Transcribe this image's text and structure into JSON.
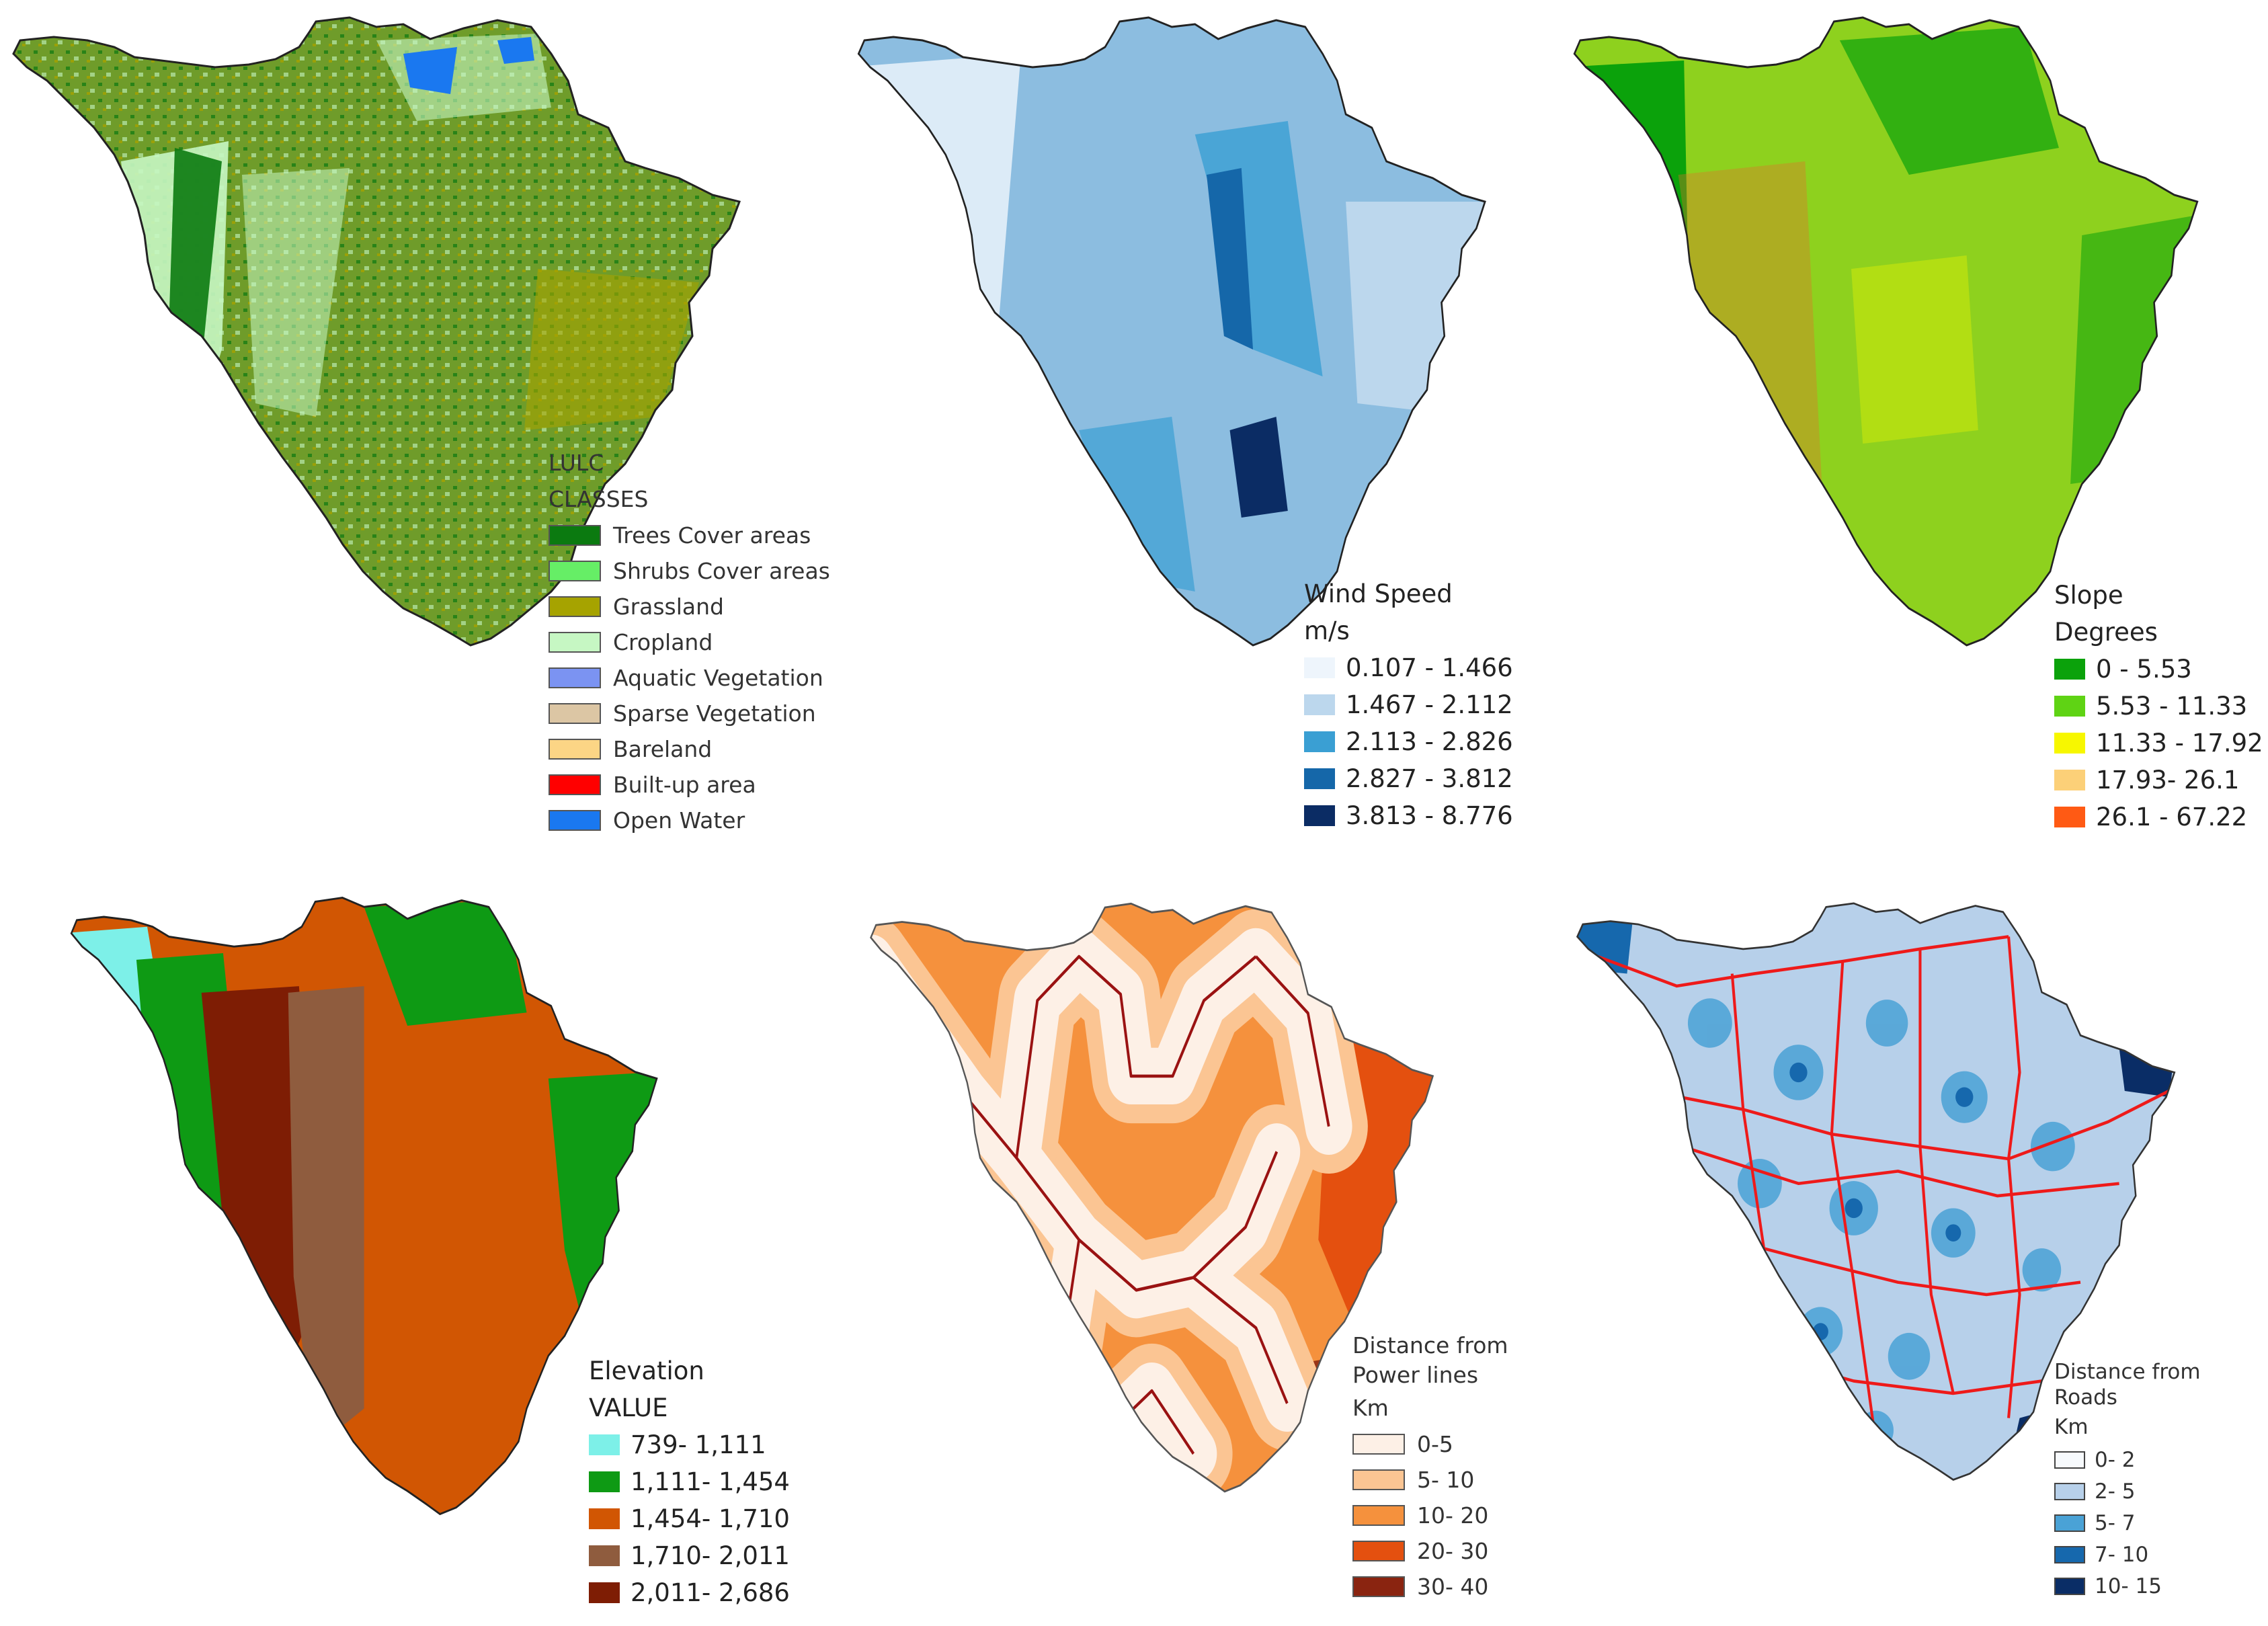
{
  "panels": {
    "lulc": {
      "legend_title_1": "LULC",
      "legend_title_2": "CLASSES",
      "items": [
        {
          "label": "Trees Cover areas",
          "color": "#0b7a10"
        },
        {
          "label": "Shrubs Cover areas",
          "color": "#66ee66"
        },
        {
          "label": "Grassland",
          "color": "#a6a300"
        },
        {
          "label": "Cropland",
          "color": "#c6f7c3"
        },
        {
          "label": "Aquatic Vegetation",
          "color": "#7b93f2"
        },
        {
          "label": "Sparse Vegetation",
          "color": "#dcc6a4"
        },
        {
          "label": "Bareland",
          "color": "#fcd585"
        },
        {
          "label": "Built-up area",
          "color": "#ff0000"
        },
        {
          "label": "Open Water",
          "color": "#1a78f0"
        }
      ],
      "map_colors": {
        "base": "#6f9c2a",
        "overlay": "#c6f7c3",
        "accent": "#0b7a10"
      }
    },
    "wind": {
      "legend_title_1": "Wind Speed",
      "legend_title_2": "m/s",
      "items": [
        {
          "label": "0.107 - 1.466",
          "color": "#eef5fc"
        },
        {
          "label": "1.467 - 2.112",
          "color": "#bcd7ed"
        },
        {
          "label": "2.113 - 2.826",
          "color": "#3a9fd3"
        },
        {
          "label": "2.827 - 3.812",
          "color": "#1567a9"
        },
        {
          "label": "3.813 - 8.776",
          "color": "#0b2c64"
        }
      ],
      "map_colors": {
        "base": "#8cbde0",
        "overlay": "#dcebf7",
        "accent": "#1567a9"
      }
    },
    "slope": {
      "legend_title_1": "Slope",
      "legend_title_2": "Degrees",
      "items": [
        {
          "label": "0 - 5.53",
          "color": "#0ba20b"
        },
        {
          "label": "5.53 - 11.33",
          "color": "#5fd314"
        },
        {
          "label": "11.33 - 17.92",
          "color": "#f7f700"
        },
        {
          "label": "17.93- 26.1",
          "color": "#fcd078"
        },
        {
          "label": "26.1 - 67.22",
          "color": "#ff5a14"
        }
      ],
      "map_colors": {
        "base": "#8ed11e",
        "overlay": "#0ba20b",
        "accent": "#e86a2a"
      }
    },
    "elevation": {
      "legend_title_1": "Elevation",
      "legend_title_2": "VALUE",
      "items": [
        {
          "label": "739- 1,111",
          "color": "#7df0e8"
        },
        {
          "label": "1,111- 1,454",
          "color": "#0e9a14"
        },
        {
          "label": "1,454- 1,710",
          "color": "#d15603"
        },
        {
          "label": "1,710- 2,011",
          "color": "#8f5c3e"
        },
        {
          "label": "2,011- 2,686",
          "color": "#7e1d04"
        }
      ],
      "map_colors": {
        "base": "#d15603",
        "overlay": "#0e9a14",
        "accent": "#7e1d04"
      }
    },
    "power": {
      "legend_title_1": "Distance from",
      "legend_title_2": "Power lines",
      "legend_title_3": "Km",
      "items": [
        {
          "label": "0-5",
          "color": "#fdf0e6"
        },
        {
          "label": "5- 10",
          "color": "#fbc593"
        },
        {
          "label": "10- 20",
          "color": "#f5913d"
        },
        {
          "label": "20- 30",
          "color": "#e4500f"
        },
        {
          "label": "30- 40",
          "color": "#8a2410"
        }
      ],
      "map_colors": {
        "base": "#f5913d",
        "overlay": "#fbc593",
        "accent": "#9a1212"
      }
    },
    "roads": {
      "legend_title_1": "Distance from",
      "legend_title_2": "Roads",
      "legend_title_3": "Km",
      "items": [
        {
          "label": "0- 2",
          "color": "#f7fafd"
        },
        {
          "label": "2- 5",
          "color": "#b7d0ea"
        },
        {
          "label": "5- 7",
          "color": "#4aa2d6"
        },
        {
          "label": "7- 10",
          "color": "#1668ad"
        },
        {
          "label": "10- 15",
          "color": "#0a2d66"
        }
      ],
      "map_colors": {
        "base": "#b7d0ea",
        "overlay": "#4aa2d6",
        "accent": "#ee1a1a"
      }
    }
  }
}
